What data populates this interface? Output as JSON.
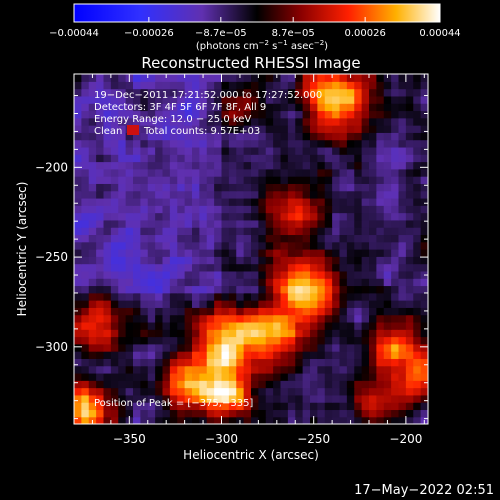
{
  "chart_data": {
    "type": "heatmap",
    "title": "Reconstructed RHESSI Image",
    "xlabel": "Heliocentric X (arcsec)",
    "ylabel": "Heliocentric Y (arcsec)",
    "xlim": [
      -380,
      -188
    ],
    "ylim": [
      -343,
      -148
    ],
    "xticks": [
      {
        "value": -350,
        "label": "−350"
      },
      {
        "value": -300,
        "label": "−300"
      },
      {
        "value": -250,
        "label": "−250"
      },
      {
        "value": -200,
        "label": "−200"
      }
    ],
    "yticks": [
      {
        "value": -200,
        "label": "−200"
      },
      {
        "value": -250,
        "label": "−250"
      },
      {
        "value": -300,
        "label": "−300"
      }
    ],
    "colorbar": {
      "range": [
        -0.00044,
        0.00044
      ],
      "ticks": [
        {
          "value": -0.00044,
          "label": "−0.00044"
        },
        {
          "value": -0.00026,
          "label": "−0.00026"
        },
        {
          "value": -8.7e-05,
          "label": "−8.7e−05"
        },
        {
          "value": 8.7e-05,
          "label": "8.7e−05"
        },
        {
          "value": 0.00026,
          "label": "0.00026"
        },
        {
          "value": 0.00044,
          "label": "0.00044"
        }
      ],
      "unit_main": "(photons cm",
      "unit_exp1": "−2",
      "unit_mid": " s",
      "unit_exp2": "−1",
      "unit_end": " asec",
      "unit_exp3": "−2",
      "unit_close": ")"
    },
    "annotations": {
      "time_range": "19−Dec−2011 17:21:52.000 to 17:27:52.000",
      "detectors": "Detectors: 3F 4F 5F 6F 7F 8F, All 9",
      "energy": "Energy Range: 12.0 − 25.0 keV",
      "method": "Clean",
      "counts": "Total counts: 9.57E+03",
      "peak": "Position of Peak = [−375,−335]"
    },
    "grid": false,
    "sources": [
      {
        "x": -237,
        "y": -162,
        "amp": 1.0,
        "s": 13
      },
      {
        "x": -262,
        "y": -225,
        "amp": 0.6,
        "s": 11
      },
      {
        "x": -255,
        "y": -268,
        "amp": 1.0,
        "s": 13
      },
      {
        "x": -275,
        "y": -295,
        "amp": 0.85,
        "s": 12
      },
      {
        "x": -300,
        "y": -298,
        "amp": 0.95,
        "s": 11
      },
      {
        "x": -320,
        "y": -318,
        "amp": 0.8,
        "s": 10
      },
      {
        "x": -298,
        "y": -325,
        "amp": 0.9,
        "s": 10
      },
      {
        "x": -375,
        "y": -335,
        "amp": 1.05,
        "s": 10
      },
      {
        "x": -365,
        "y": -288,
        "amp": 0.7,
        "s": 10
      },
      {
        "x": -205,
        "y": -300,
        "amp": 0.75,
        "s": 11
      },
      {
        "x": -215,
        "y": -330,
        "amp": 0.6,
        "s": 10
      },
      {
        "x": -290,
        "y": -165,
        "amp": 0.3,
        "s": 9
      },
      {
        "x": -192,
        "y": -318,
        "amp": 0.55,
        "s": 9
      }
    ],
    "noise_amplitude": 0.28,
    "background": -0.15
  },
  "footer": {
    "timestamp": "17−May−2022 02:51"
  }
}
